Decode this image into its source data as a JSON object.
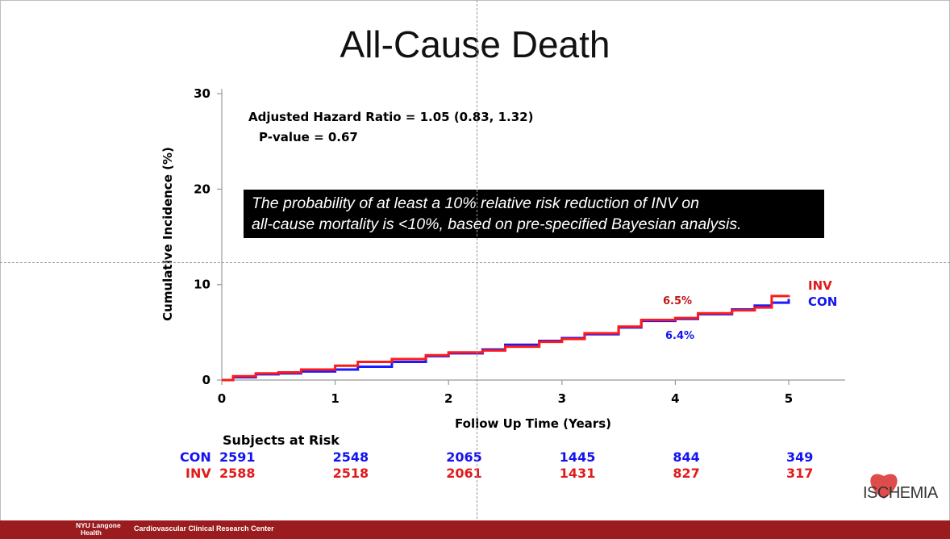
{
  "slide": {
    "title": "All-Cause Death"
  },
  "chart_data": {
    "type": "line",
    "title": "All-Cause Death",
    "xlabel": "Follow Up Time (Years)",
    "ylabel": "Cumulative Incidence (%)",
    "xlim": [
      0,
      5.5
    ],
    "ylim": [
      0,
      30
    ],
    "xticks": [
      0,
      1,
      2,
      3,
      4,
      5
    ],
    "yticks": [
      0,
      10,
      20,
      30
    ],
    "grid": false,
    "series": [
      {
        "name": "CON",
        "color": "#1a1aff",
        "x": [
          0,
          0.1,
          0.3,
          0.5,
          0.7,
          1.0,
          1.2,
          1.5,
          1.8,
          2.0,
          2.3,
          2.5,
          2.8,
          3.0,
          3.2,
          3.5,
          3.7,
          4.0,
          4.2,
          4.5,
          4.7,
          4.85,
          5.0
        ],
        "y": [
          0,
          0.3,
          0.6,
          0.7,
          0.9,
          1.1,
          1.4,
          1.9,
          2.5,
          2.8,
          3.2,
          3.7,
          4.1,
          4.4,
          4.8,
          5.5,
          6.2,
          6.4,
          6.9,
          7.4,
          7.8,
          8.1,
          8.5
        ]
      },
      {
        "name": "INV",
        "color": "#ff1a1a",
        "x": [
          0,
          0.1,
          0.3,
          0.5,
          0.7,
          1.0,
          1.2,
          1.5,
          1.8,
          2.0,
          2.3,
          2.5,
          2.8,
          3.0,
          3.2,
          3.5,
          3.7,
          4.0,
          4.2,
          4.5,
          4.7,
          4.85,
          5.0
        ],
        "y": [
          0,
          0.4,
          0.7,
          0.8,
          1.1,
          1.5,
          1.9,
          2.2,
          2.6,
          2.9,
          3.1,
          3.5,
          4.0,
          4.3,
          4.9,
          5.6,
          6.3,
          6.5,
          7.0,
          7.3,
          7.6,
          8.8,
          8.9
        ]
      }
    ],
    "annotations": {
      "hazard_ratio": "Adjusted Hazard Ratio = 1.05 (0.83, 1.32)",
      "p_value": "P-value = 0.67",
      "inv_pct": "6.5%",
      "con_pct": "6.4%",
      "legend_inv": "INV",
      "legend_con": "CON"
    }
  },
  "note": {
    "line1": "The probability of at least a 10% relative risk reduction of INV on",
    "line2": "all-cause mortality is <10%, based on pre-specified Bayesian analysis."
  },
  "risk_table": {
    "header": "Subjects at Risk",
    "con_label": "CON",
    "inv_label": "INV",
    "con_values": [
      "2591",
      "2548",
      "2065",
      "1445",
      "844",
      "349"
    ],
    "inv_values": [
      "2588",
      "2518",
      "2061",
      "1431",
      "827",
      "317"
    ]
  },
  "footer": {
    "org_line1": "NYU Langone",
    "org_line2": "Health",
    "center_name": "Cardiovascular Clinical Research Center",
    "logo_text": "ISCHEMIA"
  },
  "colors": {
    "inv": "#e11b1b",
    "con": "#1414f0",
    "footer": "#9b1c1f",
    "inv_label_dark": "#c0141a"
  }
}
